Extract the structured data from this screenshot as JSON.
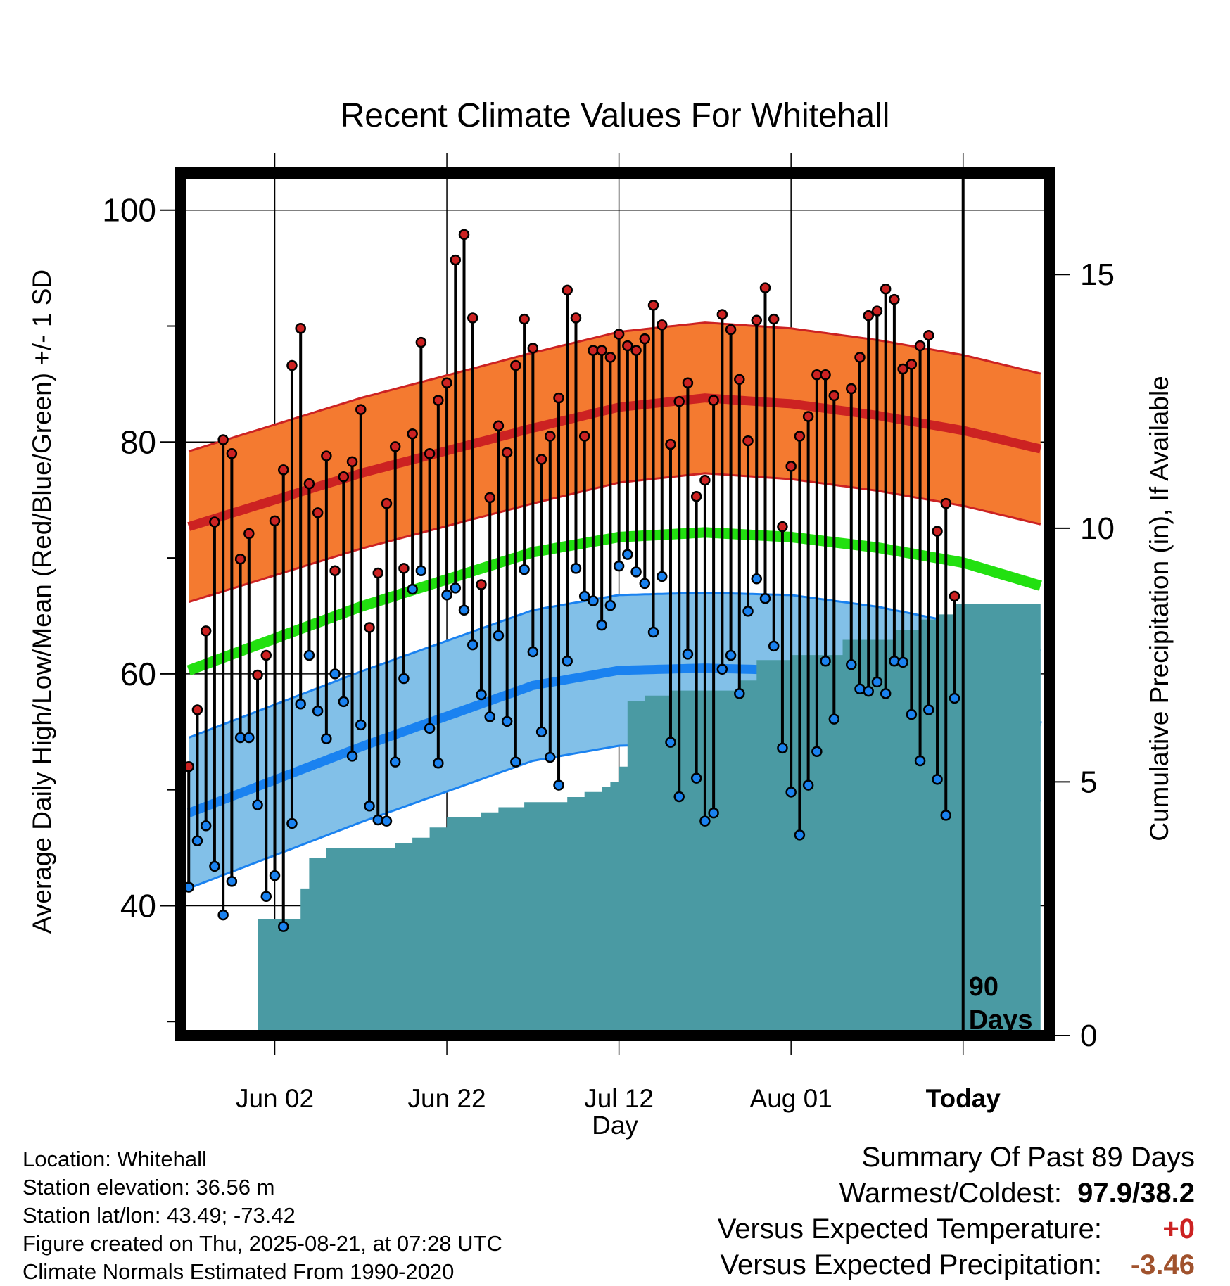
{
  "title": "Recent Climate Values For Whitehall",
  "ylabel_left": "Average Daily High/Low/Mean (Red/Blue/Green) +/- 1 SD",
  "ylabel_right": "Cumulative Precipitation (in), If Available",
  "xlabel": "Day",
  "info": {
    "location": "Location: Whitehall",
    "elevation": "Station elevation: 36.56 m",
    "latlon": "Station lat/lon: 43.49; -73.42",
    "created": "Figure created on Thu, 2025-08-21, at 07:28 UTC",
    "normals": "Climate Normals Estimated From 1990-2020"
  },
  "summary": {
    "heading": "Summary Of Past 89 Days",
    "warm_cold_label": "Warmest/Coldest:",
    "warm_cold_value": "97.9/38.2",
    "temp_label": "Versus Expected Temperature:",
    "temp_value": "+0",
    "precip_label": "Versus Expected Precipitation:",
    "precip_value": "-3.46"
  },
  "colors": {
    "high": "#cc2222",
    "high_band": "#f47a30",
    "low": "#1a82f0",
    "low_band": "#82c0e8",
    "mean": "#22e010",
    "precip": "#4a9aa3",
    "temp_value": "#cc2222",
    "precip_value": "#a0522d"
  },
  "chart_data": {
    "type": "line",
    "x_ticks": [
      "Jun 02",
      "Jun 22",
      "Jul 12",
      "Aug 01",
      "Today"
    ],
    "x_tick_days": [
      10,
      30,
      50,
      70,
      90
    ],
    "xlim": [
      -1,
      100
    ],
    "ylim_left": [
      28.8,
      103.2
    ],
    "y_ticks_left": [
      40,
      60,
      80,
      100
    ],
    "ylim_right": [
      0,
      17
    ],
    "y_ticks_right": [
      0,
      5,
      10,
      15
    ],
    "today_marker": {
      "day": 90,
      "label_line1": "90",
      "label_line2": "Days"
    },
    "grid": true,
    "normal_high": [
      [
        0,
        72.7
      ],
      [
        20,
        77.3
      ],
      [
        40,
        81.2
      ],
      [
        50,
        83.0
      ],
      [
        60,
        83.8
      ],
      [
        70,
        83.3
      ],
      [
        80,
        82.3
      ],
      [
        90,
        81.0
      ],
      [
        99,
        79.4
      ]
    ],
    "normal_high_sd": 6.5,
    "normal_low": [
      [
        0,
        48.0
      ],
      [
        20,
        53.7
      ],
      [
        40,
        59.0
      ],
      [
        50,
        60.3
      ],
      [
        60,
        60.5
      ],
      [
        70,
        60.3
      ],
      [
        80,
        59.3
      ],
      [
        90,
        57.8
      ],
      [
        99,
        55.5
      ]
    ],
    "normal_low_sd": 6.5,
    "normal_mean": [
      [
        0,
        60.3
      ],
      [
        20,
        65.8
      ],
      [
        40,
        70.5
      ],
      [
        50,
        71.8
      ],
      [
        60,
        72.2
      ],
      [
        70,
        71.8
      ],
      [
        80,
        70.9
      ],
      [
        90,
        69.6
      ],
      [
        99,
        67.6
      ]
    ],
    "series": [
      {
        "name": "High",
        "values": [
          52.0,
          56.9,
          63.7,
          73.1,
          80.2,
          79.0,
          69.9,
          72.1,
          59.9,
          61.6,
          73.2,
          77.6,
          86.6,
          89.8,
          76.4,
          73.9,
          78.8,
          68.9,
          77.0,
          78.3,
          82.8,
          64.0,
          68.7,
          74.7,
          79.6,
          69.1,
          80.7,
          88.6,
          79.0,
          83.6,
          85.1,
          95.7,
          97.9,
          90.7,
          67.7,
          75.2,
          81.4,
          79.1,
          86.6,
          90.6,
          88.1,
          78.5,
          80.5,
          83.8,
          93.1,
          90.7,
          80.5,
          87.9,
          87.9,
          87.3,
          89.3,
          88.3,
          87.9,
          88.9,
          91.8,
          90.1,
          79.8,
          83.5,
          85.1,
          75.3,
          76.7,
          83.6,
          91.0,
          89.7,
          85.4,
          80.1,
          90.5,
          93.3,
          90.6,
          72.7,
          77.9,
          80.5,
          82.2,
          85.8,
          85.8,
          84.0,
          null,
          84.6,
          87.3,
          90.9,
          91.3,
          93.2,
          92.3,
          86.3,
          86.7,
          88.3,
          89.2,
          72.3,
          74.7,
          66.7
        ]
      },
      {
        "name": "Low",
        "values": [
          41.6,
          45.6,
          46.9,
          43.4,
          39.2,
          42.1,
          54.5,
          54.5,
          48.7,
          40.8,
          42.6,
          38.2,
          47.1,
          57.4,
          61.6,
          56.8,
          54.4,
          60.0,
          57.6,
          52.9,
          55.6,
          48.6,
          47.4,
          47.3,
          52.4,
          59.6,
          67.3,
          68.9,
          55.3,
          52.3,
          66.8,
          67.4,
          65.5,
          62.5,
          58.2,
          56.3,
          63.3,
          55.9,
          52.4,
          69.0,
          61.9,
          55.0,
          52.8,
          50.4,
          61.1,
          69.1,
          66.7,
          66.3,
          64.2,
          65.9,
          69.3,
          70.3,
          68.8,
          67.8,
          63.6,
          68.4,
          54.1,
          49.4,
          61.7,
          51.0,
          47.3,
          48.0,
          60.4,
          61.6,
          58.3,
          65.4,
          68.2,
          66.5,
          62.4,
          53.6,
          49.8,
          46.1,
          50.4,
          53.3,
          61.1,
          56.1,
          null,
          60.8,
          58.7,
          58.5,
          59.3,
          58.3,
          61.1,
          61.0,
          56.5,
          52.5,
          56.9,
          50.9,
          47.8,
          57.9
        ]
      },
      {
        "name": "Cumulative Precipitation",
        "values": [
          0,
          0,
          0,
          0,
          0,
          0,
          0,
          0,
          2.3,
          2.3,
          2.3,
          2.3,
          2.3,
          2.9,
          3.5,
          3.5,
          3.7,
          3.7,
          3.7,
          3.7,
          3.7,
          3.7,
          3.7,
          3.7,
          3.8,
          3.8,
          3.9,
          3.9,
          4.1,
          4.1,
          4.3,
          4.3,
          4.3,
          4.3,
          4.4,
          4.4,
          4.5,
          4.5,
          4.5,
          4.6,
          4.6,
          4.6,
          4.6,
          4.6,
          4.7,
          4.7,
          4.8,
          4.8,
          4.9,
          5.0,
          5.3,
          6.6,
          6.6,
          6.7,
          6.7,
          6.7,
          6.8,
          6.8,
          6.8,
          6.8,
          6.8,
          6.8,
          6.8,
          6.8,
          7.0,
          7.0,
          7.4,
          7.4,
          7.4,
          7.4,
          7.5,
          7.5,
          7.5,
          7.5,
          7.5,
          7.5,
          7.8,
          7.8,
          7.8,
          7.8,
          7.8,
          7.8,
          8.0,
          8.0,
          8.0,
          8.2,
          8.2,
          8.3,
          8.3,
          8.5,
          8.5,
          8.5,
          8.5,
          8.5,
          8.5,
          8.5,
          8.5,
          8.5,
          8.5,
          8.5
        ]
      }
    ]
  }
}
